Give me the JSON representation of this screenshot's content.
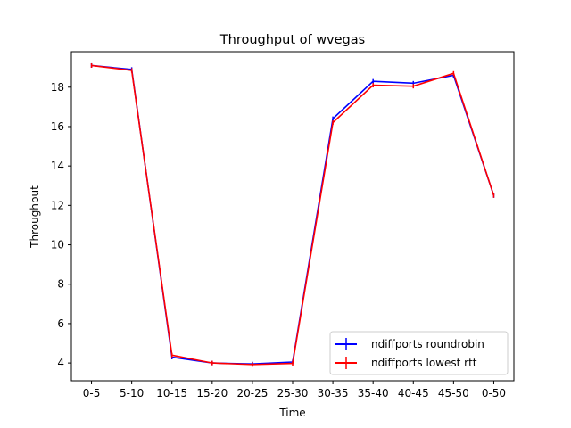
{
  "chart_data": {
    "type": "line",
    "title": "Throughput of wvegas",
    "xlabel": "Time",
    "ylabel": "Throughput",
    "categories": [
      "0-5",
      "5-10",
      "10-15",
      "15-20",
      "20-25",
      "25-30",
      "30-35",
      "35-40",
      "40-45",
      "45-50",
      "0-50"
    ],
    "ylim": [
      3.1,
      19.8
    ],
    "yticks": [
      4,
      6,
      8,
      10,
      12,
      14,
      16,
      18
    ],
    "grid": false,
    "legend_position": "lower-right",
    "series": [
      {
        "name": "ndiffports roundrobin",
        "color": "#0000ff",
        "values": [
          19.1,
          18.9,
          4.3,
          4.0,
          3.95,
          4.05,
          16.4,
          18.3,
          18.2,
          18.6,
          12.5
        ]
      },
      {
        "name": "ndiffports lowest rtt",
        "color": "#ff0000",
        "values": [
          19.1,
          18.85,
          4.4,
          4.0,
          3.92,
          3.98,
          16.2,
          18.1,
          18.05,
          18.7,
          12.5
        ]
      }
    ]
  }
}
